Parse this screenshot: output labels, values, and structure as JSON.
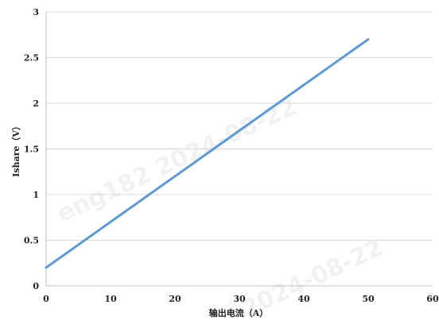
{
  "chart_data": {
    "type": "line",
    "xlabel": "输出电流（A）",
    "ylabel": "Ishare（V）",
    "xlim": [
      0,
      60
    ],
    "ylim": [
      0,
      3
    ],
    "xticks": [
      0,
      10,
      20,
      30,
      40,
      50,
      60
    ],
    "yticks": [
      0,
      0.5,
      1,
      1.5,
      2,
      2.5,
      3
    ],
    "xtick_labels": [
      "0",
      "10",
      "20",
      "30",
      "40",
      "50",
      "60"
    ],
    "ytick_labels": [
      "0",
      "0.5",
      "1",
      "1.5",
      "2",
      "2.5",
      "3"
    ],
    "grid": "horizontal",
    "series": [
      {
        "x": [
          0,
          50
        ],
        "y": [
          0.2,
          2.7
        ],
        "color": "#5b9bd5"
      }
    ],
    "watermark": [
      "eng182 2024-08-22",
      "2024-08-22"
    ]
  }
}
